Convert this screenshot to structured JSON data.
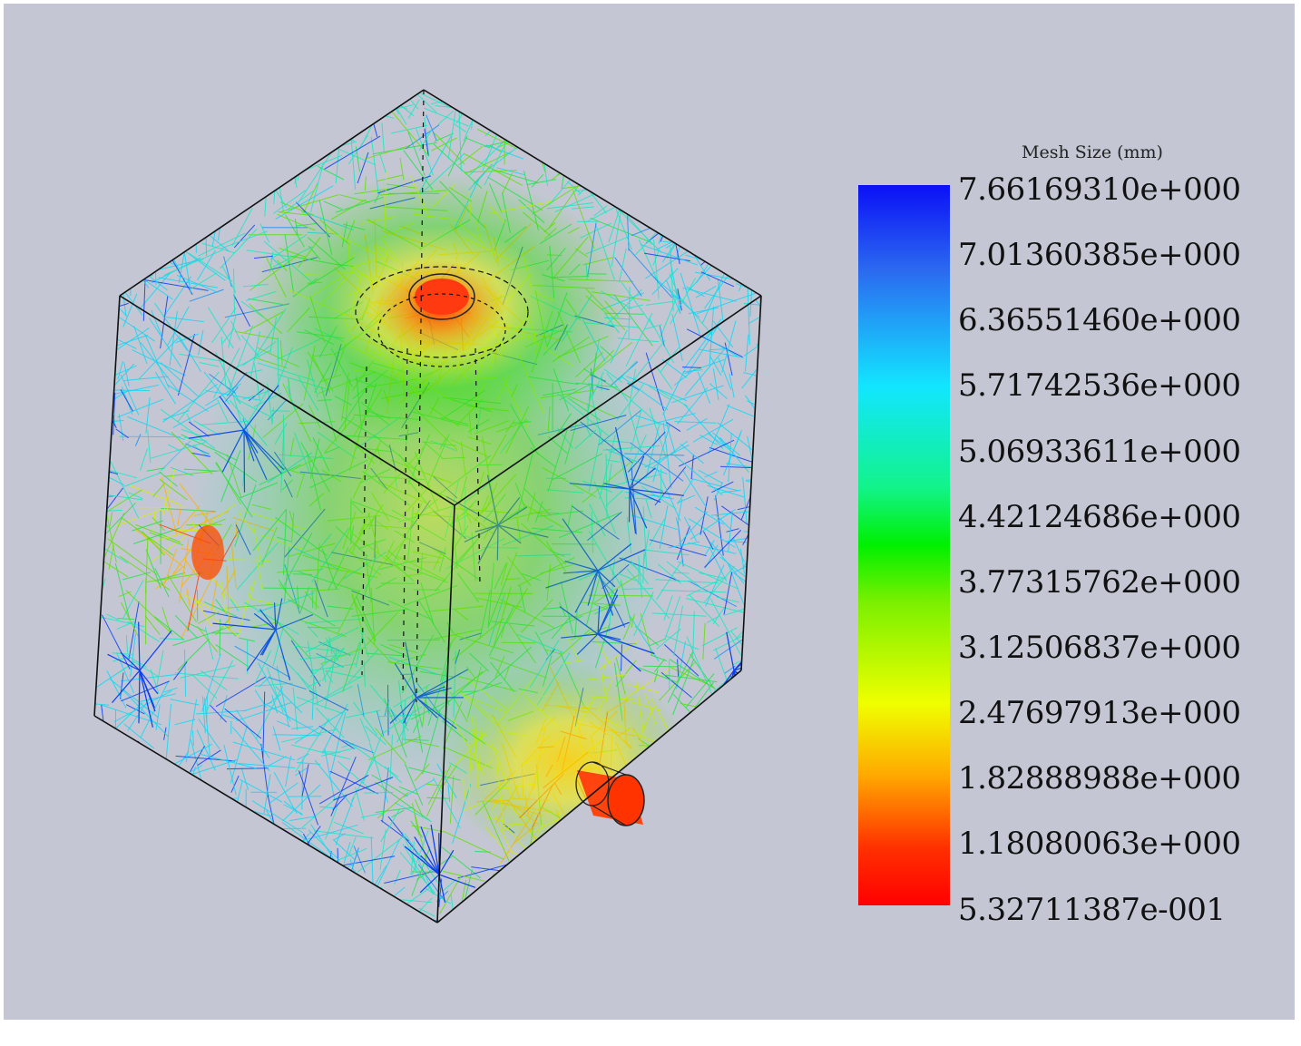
{
  "legend": {
    "title": "Mesh Size (mm)",
    "colors": {
      "max": "#0b10f6",
      "mid": "#00f000",
      "low": "#f0ff00",
      "min": "#ff0000",
      "background": "#c4c7d3"
    },
    "ticks": [
      "7.66169310e+000",
      "7.01360385e+000",
      "6.36551460e+000",
      "5.71742536e+000",
      "5.06933611e+000",
      "4.42124686e+000",
      "3.77315762e+000",
      "3.12506837e+000",
      "2.47697913e+000",
      "1.82888988e+000",
      "1.18080063e+000",
      "5.32711387e-001"
    ]
  },
  "model": {
    "view_icon": "mesh-cube-icon",
    "wire_colors": [
      "#0b3cf0",
      "#1a8cf5",
      "#11d6f2",
      "#19e6c6",
      "#22e04a",
      "#62e000",
      "#d6ec00",
      "#ffb300",
      "#ff3a00"
    ]
  }
}
